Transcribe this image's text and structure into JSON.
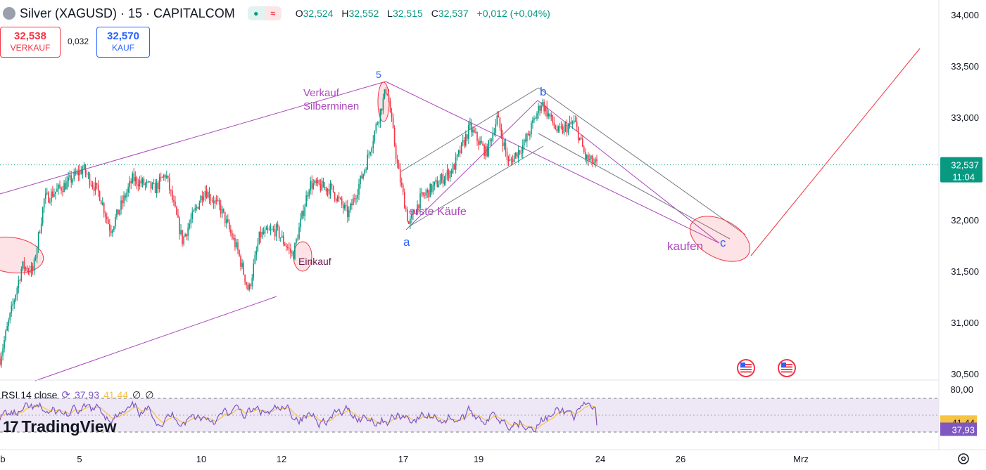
{
  "header": {
    "title": "Silver (XAGUSD) · 15 · CAPITALCOM",
    "pill_left": "●",
    "pill_right": "≈",
    "ohlc": [
      {
        "key": "O",
        "value": "32,524"
      },
      {
        "key": "H",
        "value": "32,552"
      },
      {
        "key": "L",
        "value": "32,515"
      },
      {
        "key": "C",
        "value": "32,537"
      },
      {
        "key": "",
        "value": "+0,012 (+0,04%)"
      }
    ]
  },
  "trade": {
    "sell_price": "32,538",
    "sell_label": "VERKAUF",
    "spread": "0,032",
    "buy_price": "32,570",
    "buy_label": "KAUF"
  },
  "logo": {
    "mark": "17",
    "name": "TradingView"
  },
  "rsi_header": {
    "label": "RSI 14 close",
    "value_rsi": "37,93",
    "value_ma": "41,44",
    "sym1": "∅",
    "sym2": "∅"
  },
  "colors": {
    "up": "#089981",
    "down": "#f23645",
    "purple": "#ab47bc",
    "blue": "#2962ff",
    "red": "#f23645",
    "gray": "#787b86",
    "rsi_line": "#7e57c2",
    "rsi_ma": "#f6c343",
    "rsi_band": "#ede7f6"
  },
  "chart_data": {
    "type": "candlestick",
    "price_axis": {
      "ticks": [
        "34,000",
        "33,500",
        "33,000",
        "32,500",
        "32,000",
        "31,500",
        "31,000",
        "30,500"
      ],
      "tick_values": [
        34.0,
        33.5,
        33.0,
        32.5,
        32.0,
        31.5,
        31.0,
        30.5
      ],
      "ylim": [
        30.4,
        34.05
      ],
      "current_price": 32.537,
      "current_price_label": "32,537",
      "countdown_label": "11:04"
    },
    "time_axis": {
      "ticks": [
        "b",
        "5",
        "10",
        "12",
        "17",
        "19",
        "24",
        "26",
        "Mrz"
      ]
    },
    "price_path": [
      {
        "t": 0,
        "p": 30.65
      },
      {
        "t": 2,
        "p": 31.1
      },
      {
        "t": 4,
        "p": 31.55
      },
      {
        "t": 6,
        "p": 31.5
      },
      {
        "t": 8,
        "p": 32.2
      },
      {
        "t": 12,
        "p": 32.35
      },
      {
        "t": 15,
        "p": 32.5
      },
      {
        "t": 18,
        "p": 32.25
      },
      {
        "t": 20,
        "p": 31.9
      },
      {
        "t": 24,
        "p": 32.4
      },
      {
        "t": 28,
        "p": 32.3
      },
      {
        "t": 30,
        "p": 32.45
      },
      {
        "t": 33,
        "p": 31.8
      },
      {
        "t": 37,
        "p": 32.3
      },
      {
        "t": 40,
        "p": 32.1
      },
      {
        "t": 43,
        "p": 31.7
      },
      {
        "t": 45,
        "p": 31.3
      },
      {
        "t": 47,
        "p": 31.85
      },
      {
        "t": 50,
        "p": 31.9
      },
      {
        "t": 53,
        "p": 31.65
      },
      {
        "t": 56,
        "p": 32.35
      },
      {
        "t": 60,
        "p": 32.3
      },
      {
        "t": 63,
        "p": 32.05
      },
      {
        "t": 66,
        "p": 32.5
      },
      {
        "t": 68,
        "p": 32.9
      },
      {
        "t": 70,
        "p": 33.3
      },
      {
        "t": 72,
        "p": 32.5
      },
      {
        "t": 74,
        "p": 31.95
      },
      {
        "t": 76,
        "p": 32.2
      },
      {
        "t": 79,
        "p": 32.35
      },
      {
        "t": 82,
        "p": 32.5
      },
      {
        "t": 85,
        "p": 32.9
      },
      {
        "t": 88,
        "p": 32.65
      },
      {
        "t": 90,
        "p": 33.0
      },
      {
        "t": 92,
        "p": 32.55
      },
      {
        "t": 95,
        "p": 32.75
      },
      {
        "t": 98,
        "p": 33.15
      },
      {
        "t": 101,
        "p": 32.85
      },
      {
        "t": 104,
        "p": 32.95
      },
      {
        "t": 106,
        "p": 32.6
      },
      {
        "t": 108,
        "p": 32.537
      }
    ],
    "annotations": [
      {
        "text": "Verkauf\nSilberminen",
        "color": "purple"
      },
      {
        "text": "Einkauf",
        "color": "dark"
      },
      {
        "text": "erste Käufe",
        "color": "purple"
      },
      {
        "text": "kaufen",
        "color": "purple"
      },
      {
        "text": "5",
        "color": "blue"
      },
      {
        "text": "a",
        "color": "blue"
      },
      {
        "text": "b",
        "color": "blue"
      },
      {
        "text": "c",
        "color": "blue"
      }
    ],
    "rsi": {
      "period": 14,
      "axis_label": "80,00",
      "upper": 70,
      "lower": 30,
      "mid": 50,
      "last_rsi": 37.93,
      "last_ma": 41.44,
      "last_rsi_label": "37,93",
      "last_ma_label": "41,44"
    }
  }
}
